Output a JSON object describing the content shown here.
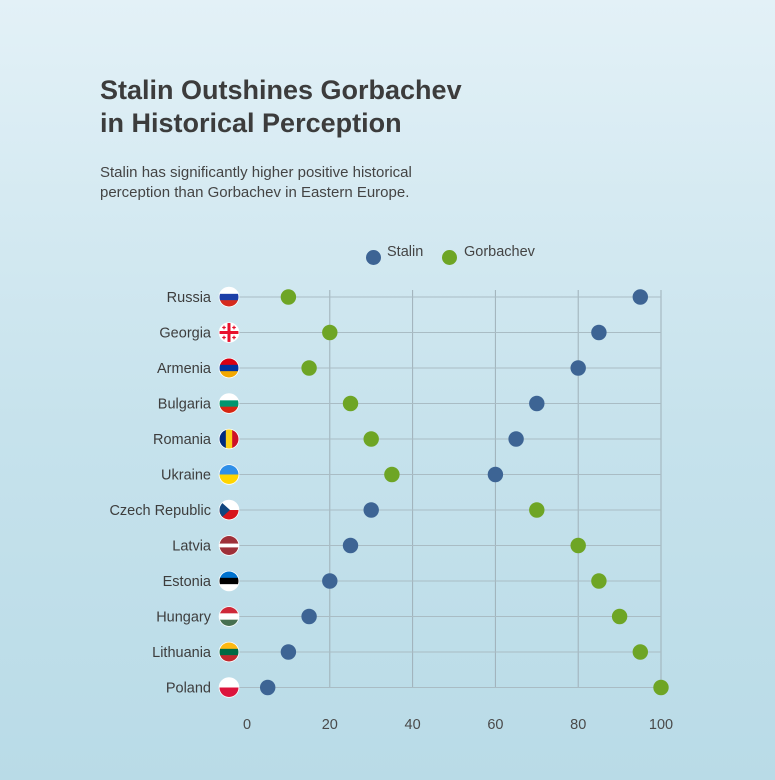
{
  "title_line1": "Stalin Outshines Gorbachev",
  "title_line2": "in Historical Perception",
  "subtitle": "Stalin has significantly higher positive historical perception than Gorbachev in Eastern Europe.",
  "chart_data": {
    "type": "scatter",
    "orientation": "horizontal-dot",
    "categories": [
      "Russia",
      "Georgia",
      "Armenia",
      "Bulgaria",
      "Romania",
      "Ukraine",
      "Czech Republic",
      "Latvia",
      "Estonia",
      "Hungary",
      "Lithuania",
      "Poland"
    ],
    "series": [
      {
        "name": "Stalin",
        "color": "#3d6494",
        "values": [
          95,
          85,
          80,
          70,
          65,
          60,
          30,
          25,
          20,
          15,
          10,
          5
        ]
      },
      {
        "name": "Gorbachev",
        "color": "#6ea525",
        "values": [
          10,
          20,
          15,
          25,
          30,
          35,
          70,
          80,
          85,
          90,
          95,
          100
        ]
      }
    ],
    "xlim": [
      0,
      100
    ],
    "xticks": [
      0,
      20,
      40,
      60,
      80,
      100
    ],
    "grid": true,
    "legend_position": "top",
    "flag_icons": [
      "russia-flag-icon",
      "georgia-flag-icon",
      "armenia-flag-icon",
      "bulgaria-flag-icon",
      "romania-flag-icon",
      "ukraine-flag-icon",
      "czech-republic-flag-icon",
      "latvia-flag-icon",
      "estonia-flag-icon",
      "hungary-flag-icon",
      "lithuania-flag-icon",
      "poland-flag-icon"
    ]
  }
}
